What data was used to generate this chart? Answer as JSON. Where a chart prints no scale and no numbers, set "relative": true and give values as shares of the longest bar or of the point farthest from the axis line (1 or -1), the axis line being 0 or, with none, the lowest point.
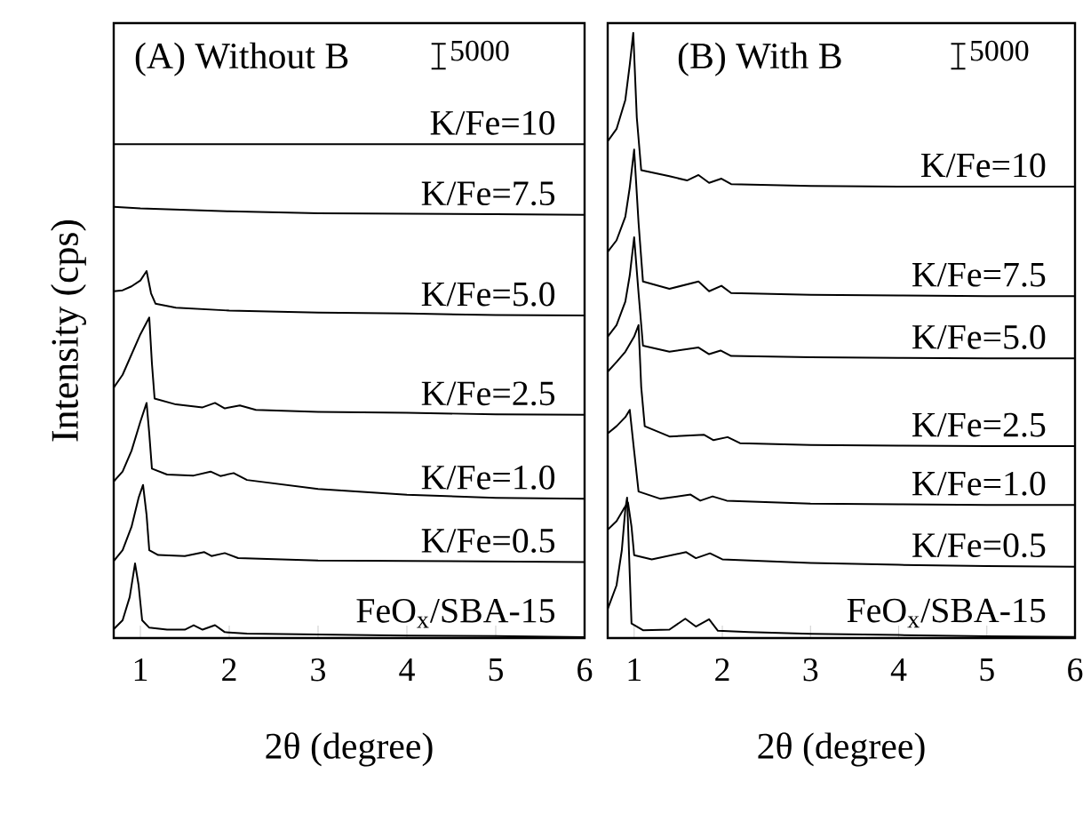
{
  "chart_data": [
    {
      "type": "line",
      "title": "(A) Without B",
      "xlabel": "2θ (degree)",
      "ylabel": "Intensity (cps)",
      "annotations": [
        "5000"
      ],
      "relative": true,
      "xlim": [
        0.7,
        6
      ],
      "xticks": [
        1,
        2,
        3,
        4,
        5,
        6
      ],
      "series": [
        {
          "name": "FeO$_{x}$/SBA-15",
          "color": "#000000",
          "x": [
            0.7,
            0.8,
            0.88,
            0.94,
            0.98,
            1.02,
            1.1,
            1.3,
            1.5,
            1.6,
            1.7,
            1.84,
            1.95,
            2.2,
            3,
            4,
            5,
            6
          ],
          "values": [
            0.018,
            0.036,
            0.083,
            0.151,
            0.107,
            0.036,
            0.021,
            0.017,
            0.017,
            0.026,
            0.017,
            0.026,
            0.012,
            0.009,
            0.007,
            0.005,
            0.004,
            0.002
          ]
        },
        {
          "name": "K/Fe=0.5",
          "color": "#000000",
          "x": [
            0.7,
            0.8,
            0.9,
            0.98,
            1.03,
            1.07,
            1.1,
            1.2,
            1.5,
            1.72,
            1.8,
            1.95,
            2.1,
            3,
            4,
            5,
            6
          ],
          "values": [
            0.156,
            0.178,
            0.225,
            0.284,
            0.31,
            0.249,
            0.178,
            0.168,
            0.166,
            0.174,
            0.166,
            0.172,
            0.162,
            0.157,
            0.156,
            0.155,
            0.154
          ]
        },
        {
          "name": "K/Fe=1.0",
          "color": "#000000",
          "x": [
            0.7,
            0.8,
            0.9,
            1.0,
            1.07,
            1.1,
            1.13,
            1.3,
            1.6,
            1.79,
            1.9,
            2.05,
            2.2,
            3,
            4,
            5,
            6
          ],
          "values": [
            0.317,
            0.337,
            0.379,
            0.438,
            0.476,
            0.414,
            0.343,
            0.331,
            0.329,
            0.337,
            0.328,
            0.334,
            0.32,
            0.302,
            0.29,
            0.284,
            0.282
          ]
        },
        {
          "name": "K/Fe=2.5",
          "color": "#000000",
          "x": [
            0.7,
            0.8,
            0.9,
            1.0,
            1.1,
            1.13,
            1.16,
            1.4,
            1.7,
            1.84,
            1.95,
            2.12,
            2.3,
            3,
            4,
            5,
            6
          ],
          "values": [
            0.507,
            0.533,
            0.574,
            0.615,
            0.649,
            0.556,
            0.485,
            0.473,
            0.467,
            0.476,
            0.465,
            0.471,
            0.462,
            0.458,
            0.456,
            0.453,
            0.452
          ]
        },
        {
          "name": "K/Fe=5.0",
          "color": "#000000",
          "x": [
            0.7,
            0.8,
            0.9,
            1.0,
            1.07,
            1.12,
            1.17,
            1.4,
            2,
            3,
            4,
            5,
            6
          ],
          "values": [
            0.702,
            0.704,
            0.712,
            0.724,
            0.743,
            0.698,
            0.677,
            0.669,
            0.663,
            0.659,
            0.657,
            0.654,
            0.653
          ]
        },
        {
          "name": "K/Fe=7.5",
          "color": "#000000",
          "x": [
            0.7,
            1,
            2,
            3,
            4,
            5,
            6
          ],
          "values": [
            0.873,
            0.87,
            0.864,
            0.86,
            0.859,
            0.858,
            0.857
          ]
        },
        {
          "name": "K/Fe=10",
          "color": "#000000",
          "x": [
            0.7,
            6
          ],
          "values": [
            1,
            1
          ]
        }
      ]
    },
    {
      "type": "line",
      "title": "(B) With B",
      "xlabel": "2θ (degree)",
      "annotations": [
        "5000"
      ],
      "relative": true,
      "xlim": [
        0.7,
        6
      ],
      "xticks": [
        1,
        2,
        3,
        4,
        5,
        6
      ],
      "series": [
        {
          "name": "FeO$_{x}$/SBA-15",
          "color": "#000000",
          "x": [
            0.7,
            0.8,
            0.86,
            0.9,
            0.92,
            0.95,
            0.97,
            1.1,
            1.4,
            1.58,
            1.7,
            1.85,
            1.95,
            2.3,
            3,
            4,
            5,
            6
          ],
          "values": [
            0.048,
            0.087,
            0.145,
            0.213,
            0.232,
            0.106,
            0.024,
            0.013,
            0.014,
            0.032,
            0.019,
            0.031,
            0.012,
            0.01,
            0.007,
            0.005,
            0.003,
            0.002
          ]
        },
        {
          "name": "K/Fe=0.5",
          "color": "#000000",
          "x": [
            0.7,
            0.8,
            0.88,
            0.93,
            0.97,
            1.0,
            1.2,
            1.59,
            1.7,
            1.86,
            2.0,
            3,
            4,
            5,
            6
          ],
          "values": [
            0.179,
            0.193,
            0.213,
            0.224,
            0.184,
            0.137,
            0.13,
            0.142,
            0.132,
            0.14,
            0.13,
            0.124,
            0.121,
            0.119,
            0.118
          ]
        },
        {
          "name": "K/Fe=1.0",
          "color": "#000000",
          "x": [
            0.7,
            0.8,
            0.9,
            0.95,
            1.0,
            1.05,
            1.3,
            1.64,
            1.75,
            1.89,
            2.05,
            3,
            4,
            5,
            6
          ],
          "values": [
            0.338,
            0.35,
            0.365,
            0.377,
            0.309,
            0.242,
            0.23,
            0.237,
            0.227,
            0.234,
            0.227,
            0.222,
            0.221,
            0.22,
            0.22
          ]
        },
        {
          "name": "K/Fe=2.5",
          "color": "#000000",
          "x": [
            0.7,
            0.8,
            0.9,
            1.0,
            1.05,
            1.08,
            1.12,
            1.4,
            1.79,
            1.9,
            2.06,
            2.2,
            3,
            4,
            5,
            6
          ],
          "values": [
            0.44,
            0.456,
            0.473,
            0.498,
            0.517,
            0.415,
            0.35,
            0.333,
            0.336,
            0.327,
            0.332,
            0.322,
            0.319,
            0.318,
            0.317,
            0.317
          ]
        },
        {
          "name": "K/Fe=5.0",
          "color": "#000000",
          "x": [
            0.7,
            0.8,
            0.9,
            0.95,
            1.0,
            1.05,
            1.1,
            1.4,
            1.73,
            1.85,
            1.98,
            2.1,
            3,
            4,
            5,
            6
          ],
          "values": [
            0.498,
            0.517,
            0.556,
            0.599,
            0.662,
            0.57,
            0.483,
            0.473,
            0.48,
            0.469,
            0.475,
            0.466,
            0.464,
            0.463,
            0.462,
            0.462
          ]
        },
        {
          "name": "K/Fe=7.5",
          "color": "#000000",
          "x": [
            0.7,
            0.8,
            0.9,
            0.95,
            1.0,
            1.05,
            1.1,
            1.4,
            1.73,
            1.85,
            1.99,
            2.1,
            3,
            4,
            5,
            6
          ],
          "values": [
            0.638,
            0.657,
            0.696,
            0.744,
            0.807,
            0.686,
            0.589,
            0.577,
            0.589,
            0.573,
            0.582,
            0.57,
            0.567,
            0.566,
            0.565,
            0.565
          ]
        },
        {
          "name": "K/Fe=10",
          "color": "#000000",
          "x": [
            0.7,
            0.8,
            0.9,
            0.95,
            0.99,
            1.03,
            1.08,
            1.4,
            1.6,
            1.73,
            1.85,
            1.99,
            2.1,
            3,
            4,
            5,
            6
          ],
          "values": [
            0.821,
            0.841,
            0.889,
            0.947,
            1,
            0.86,
            0.773,
            0.763,
            0.756,
            0.765,
            0.752,
            0.759,
            0.75,
            0.747,
            0.746,
            0.746,
            0.746
          ]
        }
      ]
    }
  ]
}
